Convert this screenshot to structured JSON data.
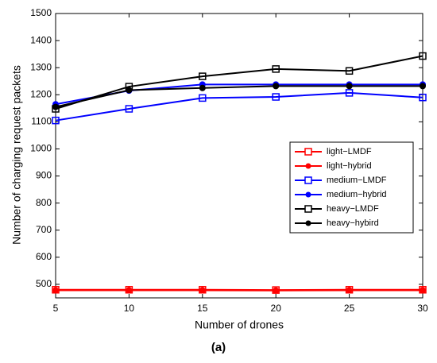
{
  "chart_data": {
    "type": "line",
    "x_label": "Number of drones",
    "y_label": "Number of charging request packets",
    "caption": "(a)",
    "x": [
      5,
      10,
      15,
      20,
      25,
      30
    ],
    "xlim": [
      5,
      30
    ],
    "xticks": [
      5,
      10,
      15,
      20,
      25,
      30
    ],
    "ylim": [
      450,
      1500
    ],
    "yticks": [
      500,
      600,
      700,
      800,
      900,
      1000,
      1100,
      1200,
      1300,
      1400,
      1500
    ],
    "grid": false,
    "legend_loc": "center right",
    "series": [
      {
        "name": "light−LMDF",
        "color": "#ff0000",
        "marker": "square",
        "values": [
          480,
          480,
          480,
          479,
          480,
          480
        ]
      },
      {
        "name": "light−hybrid",
        "color": "#ff0000",
        "marker": "circle",
        "values": [
          478,
          478,
          478,
          477,
          478,
          478
        ]
      },
      {
        "name": "medium−LMDF",
        "color": "#0000ff",
        "marker": "square",
        "values": [
          1105,
          1148,
          1188,
          1192,
          1207,
          1190
        ]
      },
      {
        "name": "medium−hybrid",
        "color": "#0000ff",
        "marker": "circle",
        "values": [
          1165,
          1215,
          1238,
          1238,
          1238,
          1238
        ]
      },
      {
        "name": "heavy−LMDF",
        "color": "#000000",
        "marker": "square",
        "values": [
          1148,
          1230,
          1268,
          1295,
          1288,
          1343
        ]
      },
      {
        "name": "heavy−hybird",
        "color": "#000000",
        "marker": "circle",
        "values": [
          1155,
          1217,
          1225,
          1232,
          1232,
          1232
        ]
      }
    ]
  }
}
